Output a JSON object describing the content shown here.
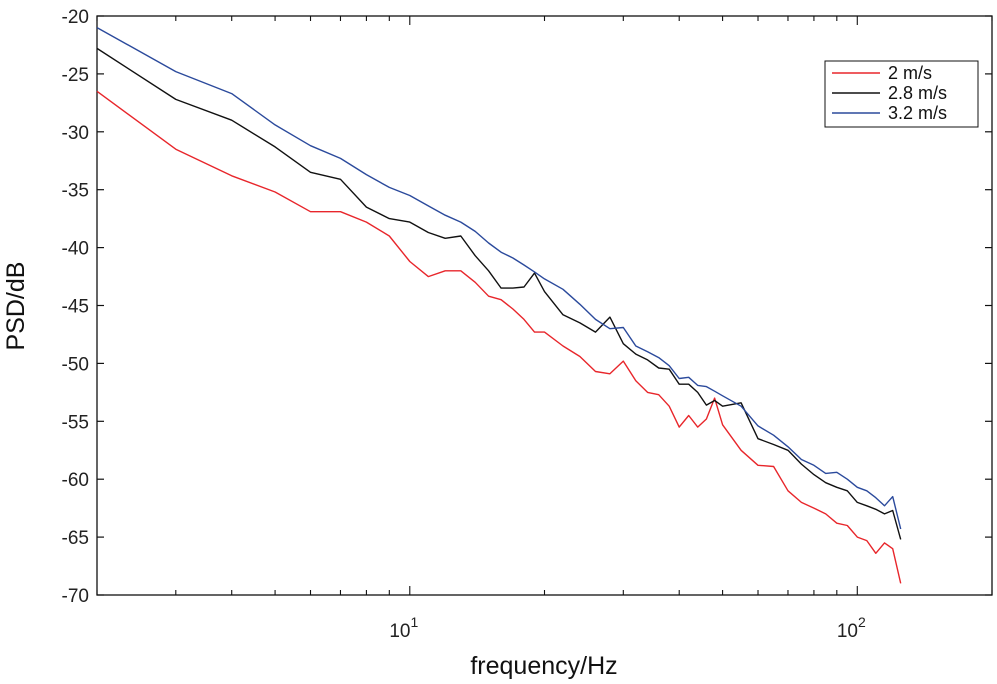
{
  "chart_data": {
    "type": "line",
    "title": "",
    "xlabel": "frequency/Hz",
    "ylabel": "PSD/dB",
    "xscale": "log",
    "xlim": [
      2,
      200
    ],
    "ylim": [
      -70,
      -20
    ],
    "y_ticks": [
      -20,
      -25,
      -30,
      -35,
      -40,
      -45,
      -50,
      -55,
      -60,
      -65,
      -70
    ],
    "x_ticks": [
      {
        "value": 10,
        "base": "10",
        "exponent": "1"
      },
      {
        "value": 100,
        "base": "10",
        "exponent": "2"
      }
    ],
    "grid": false,
    "legend_position": "top-right",
    "series": [
      {
        "name": "2 m/s",
        "color": "#e8262b",
        "x": [
          2,
          3,
          4,
          5,
          6,
          7,
          8,
          9,
          10,
          11,
          12,
          13,
          14,
          15,
          16,
          17,
          18,
          19,
          20,
          22,
          24,
          26,
          28,
          30,
          32,
          34,
          36,
          38,
          40,
          42,
          44,
          46,
          48,
          50,
          55,
          60,
          65,
          70,
          75,
          80,
          85,
          90,
          95,
          100,
          105,
          110,
          115,
          120,
          125
        ],
        "y": [
          -26.5,
          -31.5,
          -33.8,
          -35.2,
          -36.9,
          -36.9,
          -37.8,
          -39.0,
          -41.2,
          -42.5,
          -42.0,
          -42.0,
          -43.0,
          -44.2,
          -44.5,
          -45.3,
          -46.2,
          -47.3,
          -47.3,
          -48.5,
          -49.4,
          -50.7,
          -50.9,
          -49.8,
          -51.5,
          -52.5,
          -52.7,
          -53.7,
          -55.5,
          -54.5,
          -55.5,
          -54.8,
          -53.0,
          -55.3,
          -57.5,
          -58.8,
          -58.9,
          -61.0,
          -62.0,
          -62.5,
          -63.0,
          -63.8,
          -64.0,
          -65.0,
          -65.3,
          -66.4,
          -65.5,
          -66.0,
          -69.0
        ]
      },
      {
        "name": "2.8 m/s",
        "color": "#111111",
        "x": [
          2,
          3,
          4,
          5,
          6,
          7,
          8,
          9,
          10,
          11,
          12,
          13,
          14,
          15,
          16,
          17,
          18,
          19,
          20,
          22,
          24,
          26,
          28,
          30,
          32,
          34,
          36,
          38,
          40,
          42,
          44,
          46,
          48,
          50,
          55,
          60,
          65,
          70,
          75,
          80,
          85,
          90,
          95,
          100,
          105,
          110,
          115,
          120,
          125
        ],
        "y": [
          -22.8,
          -27.2,
          -29.0,
          -31.3,
          -33.5,
          -34.1,
          -36.5,
          -37.5,
          -37.8,
          -38.7,
          -39.2,
          -39.0,
          -40.7,
          -42.0,
          -43.5,
          -43.5,
          -43.4,
          -42.2,
          -43.8,
          -45.8,
          -46.5,
          -47.3,
          -46.0,
          -48.3,
          -49.2,
          -49.7,
          -50.4,
          -50.5,
          -51.8,
          -51.8,
          -52.5,
          -53.6,
          -53.2,
          -53.7,
          -53.4,
          -56.5,
          -57.0,
          -57.5,
          -58.7,
          -59.6,
          -60.3,
          -60.7,
          -61.0,
          -62.0,
          -62.3,
          -62.6,
          -63.0,
          -62.7,
          -65.2
        ]
      },
      {
        "name": "3.2 m/s",
        "color": "#2b4a9c",
        "x": [
          2,
          3,
          4,
          5,
          6,
          7,
          8,
          9,
          10,
          11,
          12,
          13,
          14,
          15,
          16,
          17,
          18,
          19,
          20,
          22,
          24,
          26,
          28,
          30,
          32,
          34,
          36,
          38,
          40,
          42,
          44,
          46,
          48,
          50,
          55,
          60,
          65,
          70,
          75,
          80,
          85,
          90,
          95,
          100,
          105,
          110,
          115,
          120,
          125
        ],
        "y": [
          -21.0,
          -24.8,
          -26.7,
          -29.4,
          -31.2,
          -32.3,
          -33.7,
          -34.8,
          -35.5,
          -36.4,
          -37.2,
          -37.8,
          -38.6,
          -39.6,
          -40.4,
          -40.9,
          -41.5,
          -42.1,
          -42.7,
          -43.6,
          -44.9,
          -46.2,
          -47.0,
          -46.9,
          -48.5,
          -49.0,
          -49.5,
          -50.2,
          -51.3,
          -51.2,
          -51.9,
          -52.0,
          -52.4,
          -52.8,
          -53.7,
          -55.4,
          -56.2,
          -57.2,
          -58.3,
          -58.8,
          -59.5,
          -59.4,
          -60.0,
          -60.7,
          -61.0,
          -61.6,
          -62.3,
          -61.5,
          -64.3
        ]
      }
    ]
  }
}
